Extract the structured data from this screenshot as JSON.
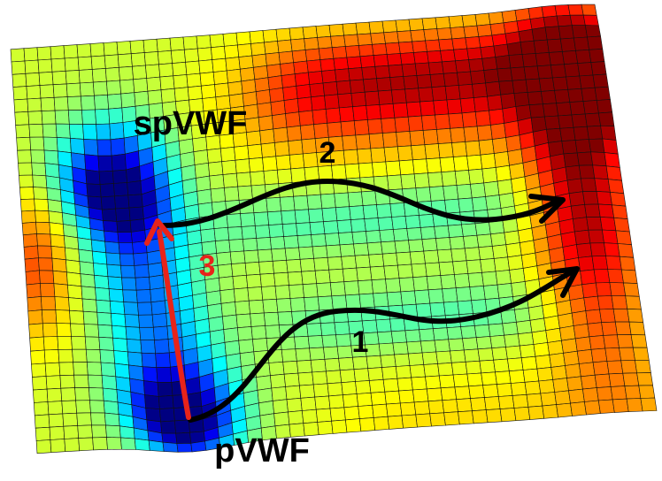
{
  "labels": {
    "top_state": "spVWF",
    "bottom_state": "pVWF",
    "path_1": "1",
    "path_2": "2",
    "path_3": "3"
  }
}
